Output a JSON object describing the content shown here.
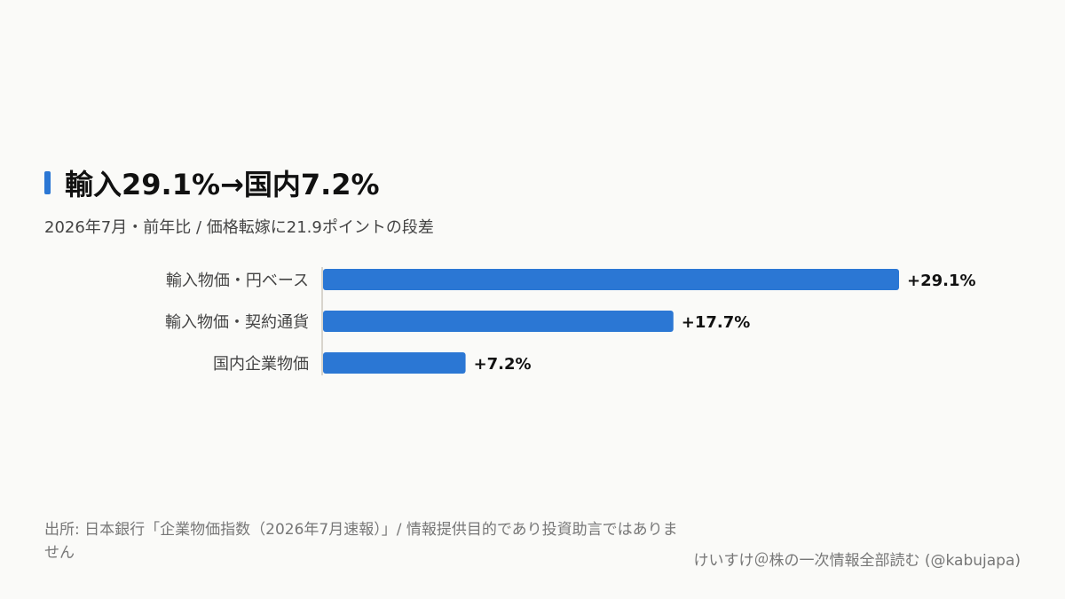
{
  "title": "輸入29.1%→国内7.2%",
  "subtitle": "2026年7月・前年比 / 価格転嫁に21.9ポイントの段差",
  "colors": {
    "accent": "#2b77d4",
    "bar": "#2b77d4",
    "background": "#fafaf8"
  },
  "chart_data": {
    "type": "bar",
    "orientation": "horizontal",
    "categories": [
      "輸入物価・円ベース",
      "輸入物価・契約通貨",
      "国内企業物価"
    ],
    "values": [
      29.1,
      17.7,
      7.2
    ],
    "value_labels": [
      "+29.1%",
      "+17.7%",
      "+7.2%"
    ],
    "xlim": [
      0,
      29.1
    ],
    "grid": false,
    "legend": "none"
  },
  "footer": {
    "source": "出所: 日本銀行「企業物価指数（2026年7月速報）」/ 情報提供目的であり投資助言ではありません",
    "credit": "けいすけ＠株の一次情報全部読む (@kabujapa)"
  }
}
